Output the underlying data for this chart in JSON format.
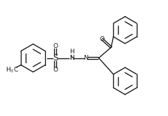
{
  "bg_color": "#ffffff",
  "line_color": "#1a1a1a",
  "line_width": 1.0,
  "font_size": 6.5,
  "fig_width": 2.42,
  "fig_height": 1.67,
  "dpi": 100,
  "xlim": [
    0,
    10
  ],
  "ylim": [
    0,
    7
  ]
}
